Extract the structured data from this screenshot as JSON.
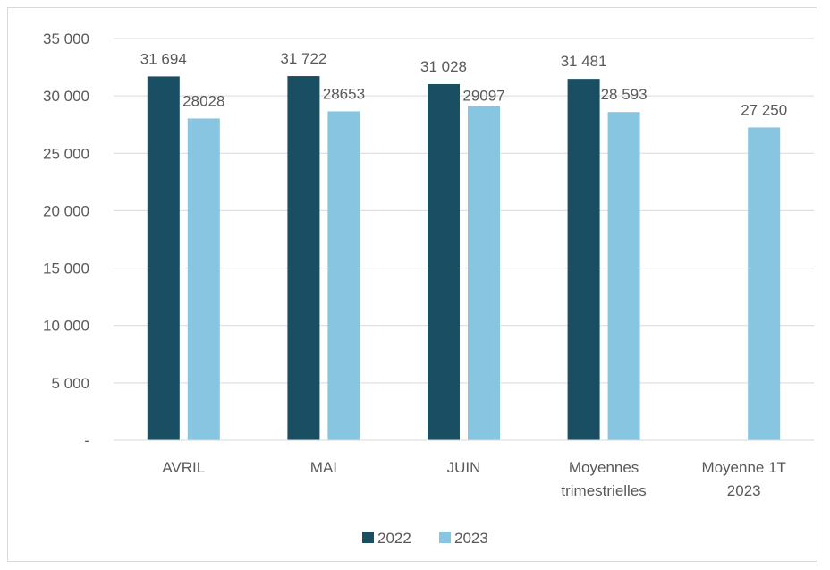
{
  "chart_data": {
    "type": "bar",
    "title": "",
    "xlabel": "",
    "ylabel": "",
    "categories": [
      [
        "AVRIL"
      ],
      [
        "MAI"
      ],
      [
        "JUIN"
      ],
      [
        "Moyennes",
        "trimestrielles"
      ],
      [
        "Moyenne 1T",
        "2023"
      ]
    ],
    "series": [
      {
        "name": "2022",
        "color": "#1a4e63",
        "values": [
          31694,
          31722,
          31028,
          31481,
          null
        ],
        "labels": [
          "31 694",
          "31 722",
          "31 028",
          "31 481",
          ""
        ]
      },
      {
        "name": "2023",
        "color": "#87c5e0",
        "values": [
          28028,
          28653,
          29097,
          28593,
          27250
        ],
        "labels": [
          "28028",
          "28653",
          "29097",
          "28 593",
          "27 250"
        ]
      }
    ],
    "ylim": [
      0,
      35000
    ],
    "yticks": [
      0,
      5000,
      10000,
      15000,
      20000,
      25000,
      30000,
      35000
    ],
    "ytick_labels": [
      "-",
      "5 000",
      "10 000",
      "15 000",
      "20 000",
      "25 000",
      "30 000",
      "35 000"
    ],
    "grid": true,
    "legend_position": "bottom"
  }
}
